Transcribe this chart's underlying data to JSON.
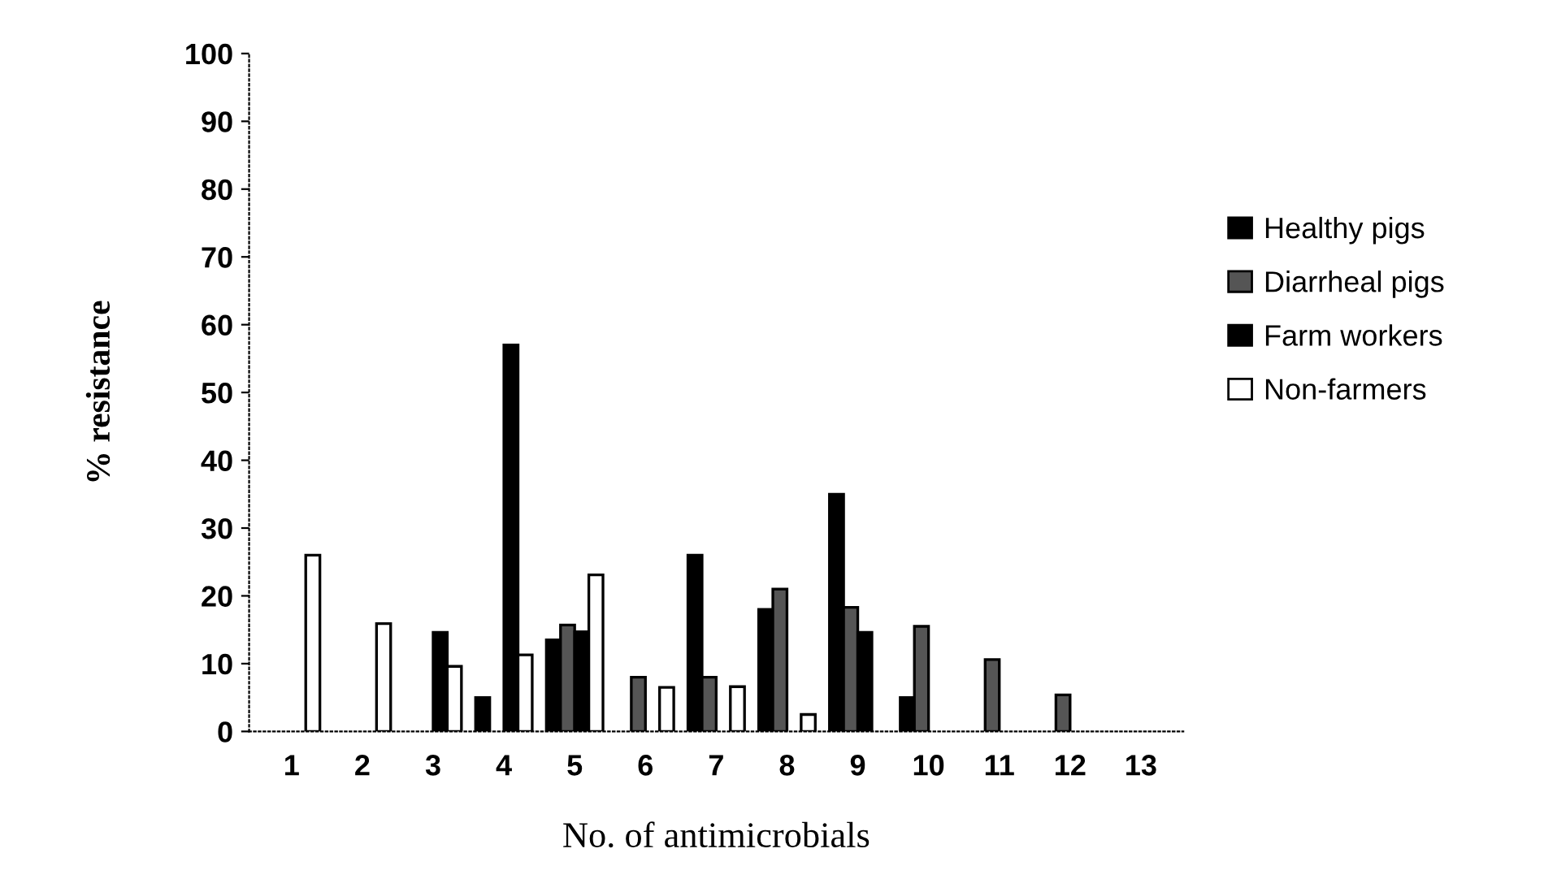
{
  "chart_data": {
    "type": "bar",
    "xlabel": "No. of antimicrobials",
    "ylabel": "% resistance",
    "categories": [
      "1",
      "2",
      "3",
      "4",
      "5",
      "6",
      "7",
      "8",
      "9",
      "10",
      "11",
      "12",
      "13"
    ],
    "series": [
      {
        "name": "Healthy pigs",
        "color": "#000000",
        "values": [
          null,
          null,
          null,
          5,
          13.5,
          null,
          26,
          18,
          35,
          5,
          null,
          null,
          null
        ]
      },
      {
        "name": "Diarrheal pigs",
        "color": "#555555",
        "values": [
          null,
          null,
          null,
          null,
          15.7,
          8,
          8,
          21,
          18.3,
          15.5,
          10.6,
          5.4,
          null
        ]
      },
      {
        "name": "Farm workers",
        "color": "#000000",
        "values": [
          null,
          null,
          14.6,
          57,
          14.7,
          null,
          null,
          null,
          14.6,
          null,
          null,
          null,
          null
        ]
      },
      {
        "name": "Non-farmers",
        "color": "#ffffff",
        "values": [
          26,
          15.9,
          9.6,
          11.3,
          23.1,
          6.5,
          6.6,
          2.5,
          null,
          null,
          null,
          null,
          null
        ]
      }
    ],
    "ylim": [
      0,
      100
    ],
    "yticks": [
      0,
      10,
      20,
      30,
      40,
      50,
      60,
      70,
      80,
      90,
      100
    ],
    "grid": false,
    "legend": "right"
  }
}
